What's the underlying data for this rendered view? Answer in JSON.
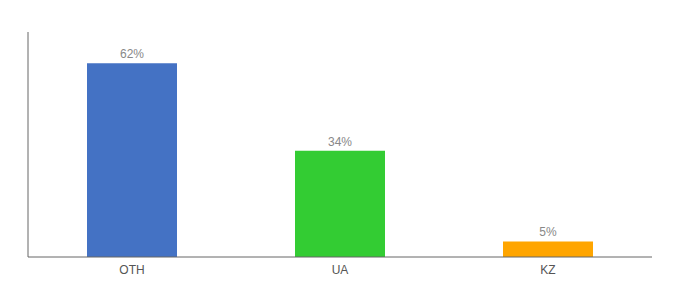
{
  "chart_data": {
    "type": "bar",
    "categories": [
      "OTH",
      "UA",
      "KZ"
    ],
    "values": [
      62,
      34,
      5
    ],
    "value_labels": [
      "62%",
      "34%",
      "5%"
    ],
    "colors": [
      "#4472C4",
      "#33CC33",
      "#FFA500"
    ],
    "ylim": [
      0,
      72
    ],
    "data_labels": true,
    "tick_labels": "x"
  }
}
